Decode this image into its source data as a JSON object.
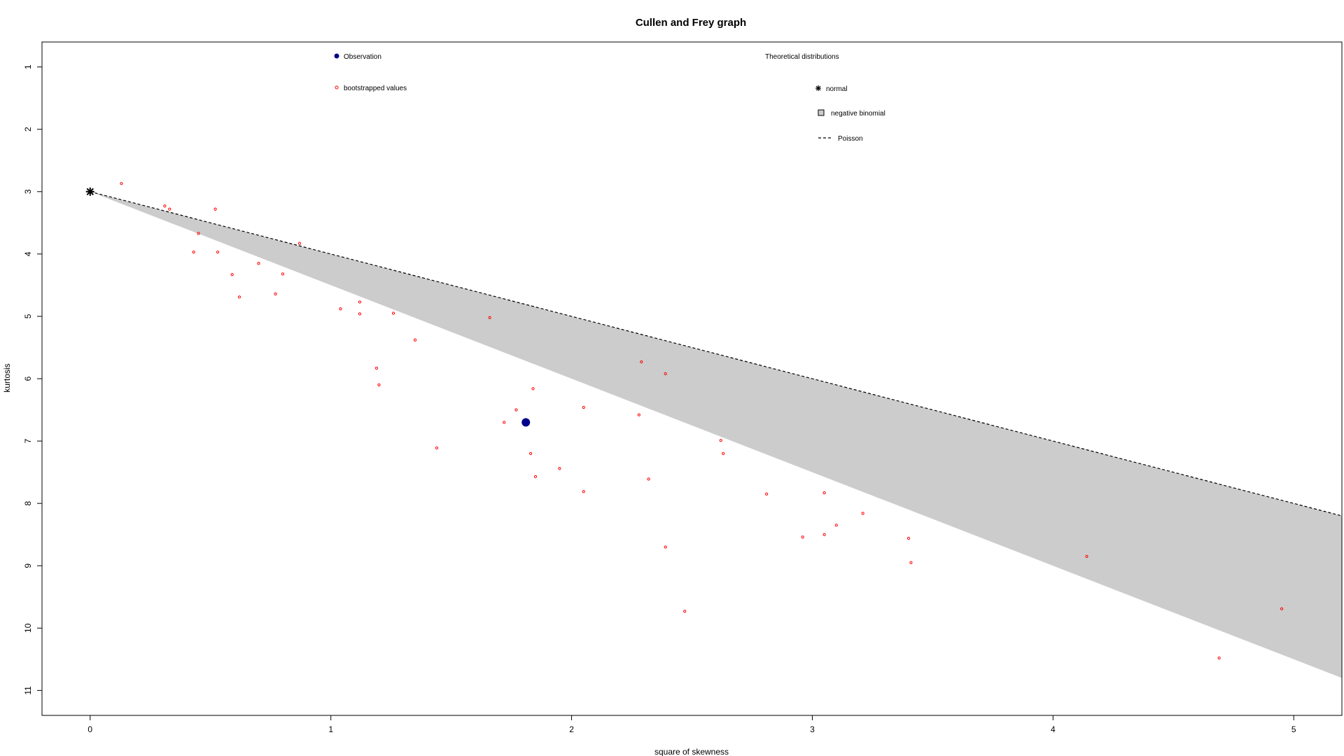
{
  "chart_data": {
    "type": "scatter",
    "title": "Cullen and Frey graph",
    "xlabel": "square of skewness",
    "ylabel": "kurtosis",
    "xlim": [
      -0.2,
      5.2
    ],
    "ylim": [
      11.4,
      0.6
    ],
    "y_reversed": true,
    "x_ticks": [
      0,
      1,
      2,
      3,
      4,
      5
    ],
    "y_ticks": [
      1,
      2,
      3,
      4,
      5,
      6,
      7,
      8,
      9,
      10,
      11
    ],
    "grid": false,
    "observation": {
      "x": 1.81,
      "y": 6.7,
      "color": "#00008B"
    },
    "normal": {
      "x": 0,
      "y": 3
    },
    "negative_binomial_region": {
      "color": "#CCCCCC",
      "upper_boundary": [
        [
          0,
          3
        ],
        [
          5.2,
          8.2
        ]
      ],
      "lower_boundary": [
        [
          0,
          3
        ],
        [
          5.2,
          10.8
        ]
      ]
    },
    "poisson_line": [
      [
        0,
        3
      ],
      [
        5.2,
        8.2
      ]
    ],
    "bootstrapped_values": {
      "color": "#FF0000",
      "points": [
        [
          0.13,
          2.87
        ],
        [
          0.31,
          3.23
        ],
        [
          0.33,
          3.28
        ],
        [
          0.52,
          3.28
        ],
        [
          0.45,
          3.67
        ],
        [
          0.43,
          3.97
        ],
        [
          0.53,
          3.97
        ],
        [
          0.87,
          3.83
        ],
        [
          0.59,
          4.33
        ],
        [
          0.7,
          4.15
        ],
        [
          0.8,
          4.32
        ],
        [
          0.62,
          4.69
        ],
        [
          0.77,
          4.64
        ],
        [
          1.04,
          4.88
        ],
        [
          1.12,
          4.77
        ],
        [
          1.12,
          4.96
        ],
        [
          1.26,
          4.95
        ],
        [
          1.35,
          5.38
        ],
        [
          1.66,
          5.02
        ],
        [
          1.19,
          5.83
        ],
        [
          1.2,
          6.1
        ],
        [
          1.44,
          7.11
        ],
        [
          1.72,
          6.7
        ],
        [
          1.77,
          6.5
        ],
        [
          1.84,
          6.16
        ],
        [
          1.83,
          7.2
        ],
        [
          1.85,
          7.57
        ],
        [
          1.95,
          7.44
        ],
        [
          2.05,
          6.46
        ],
        [
          2.05,
          7.81
        ],
        [
          2.28,
          6.58
        ],
        [
          2.29,
          5.73
        ],
        [
          2.39,
          5.92
        ],
        [
          2.32,
          7.61
        ],
        [
          2.39,
          8.7
        ],
        [
          2.47,
          9.73
        ],
        [
          2.62,
          6.99
        ],
        [
          2.63,
          7.2
        ],
        [
          2.81,
          7.85
        ],
        [
          2.96,
          8.54
        ],
        [
          3.05,
          7.83
        ],
        [
          3.05,
          8.5
        ],
        [
          3.1,
          8.35
        ],
        [
          3.21,
          8.16
        ],
        [
          3.4,
          8.56
        ],
        [
          3.41,
          8.95
        ],
        [
          4.14,
          8.85
        ],
        [
          4.69,
          10.48
        ],
        [
          4.95,
          9.69
        ]
      ]
    },
    "legend_left": {
      "observation_label": "Observation",
      "bootstrap_label": "bootstrapped values"
    },
    "legend_right": {
      "title": "Theoretical distributions",
      "normal_label": "normal",
      "negbin_label": "negative binomial",
      "poisson_label": "Poisson"
    }
  }
}
